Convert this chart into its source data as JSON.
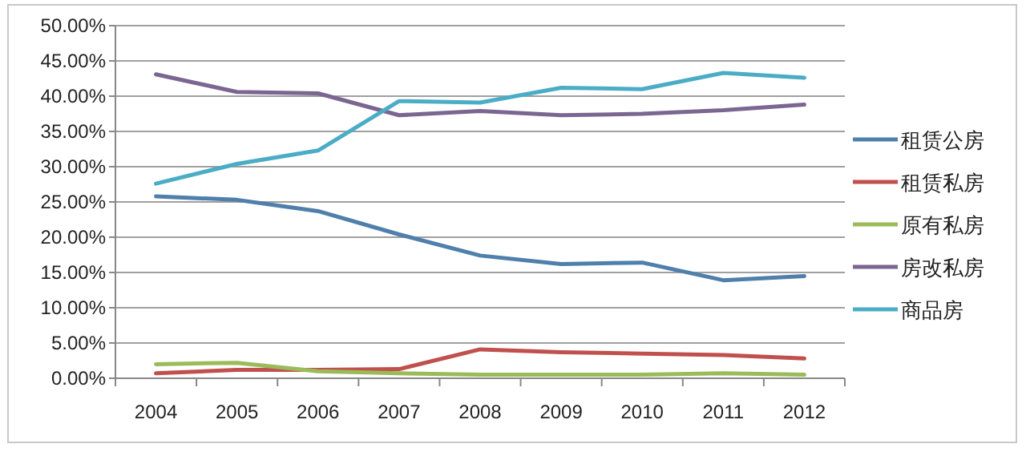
{
  "chart_data": {
    "type": "line",
    "categories": [
      "2004",
      "2005",
      "2006",
      "2007",
      "2008",
      "2009",
      "2010",
      "2011",
      "2012"
    ],
    "series": [
      {
        "name": "租赁公房",
        "color": "#4f7fab",
        "values": [
          25.8,
          25.3,
          23.7,
          20.4,
          17.4,
          16.2,
          16.4,
          13.9,
          14.5
        ]
      },
      {
        "name": "租赁私房",
        "color": "#c0504d",
        "values": [
          0.7,
          1.2,
          1.2,
          1.3,
          4.1,
          3.7,
          3.5,
          3.3,
          2.8
        ]
      },
      {
        "name": "原有私房",
        "color": "#9bbb59",
        "values": [
          2.0,
          2.2,
          1.0,
          0.7,
          0.5,
          0.5,
          0.5,
          0.7,
          0.5
        ]
      },
      {
        "name": "房改私房",
        "color": "#7b6591",
        "values": [
          43.1,
          40.6,
          40.4,
          37.3,
          37.9,
          37.3,
          37.5,
          38.0,
          38.8
        ]
      },
      {
        "name": "商品房",
        "color": "#4bacc6",
        "values": [
          27.6,
          30.4,
          32.3,
          39.3,
          39.1,
          41.2,
          41.0,
          43.3,
          42.6
        ]
      }
    ],
    "ylim": [
      0,
      50
    ],
    "yticks": [
      {
        "value": 0,
        "label": "0.00%"
      },
      {
        "value": 5,
        "label": "5.00%"
      },
      {
        "value": 10,
        "label": "10.00%"
      },
      {
        "value": 15,
        "label": "15.00%"
      },
      {
        "value": 20,
        "label": "20.00%"
      },
      {
        "value": 25,
        "label": "25.00%"
      },
      {
        "value": 30,
        "label": "30.00%"
      },
      {
        "value": 35,
        "label": "35.00%"
      },
      {
        "value": 40,
        "label": "40.00%"
      },
      {
        "value": 45,
        "label": "45.00%"
      },
      {
        "value": 50,
        "label": "50.00%"
      }
    ],
    "grid": "y",
    "legend": "right",
    "marker": "none",
    "line_style": "solid"
  }
}
